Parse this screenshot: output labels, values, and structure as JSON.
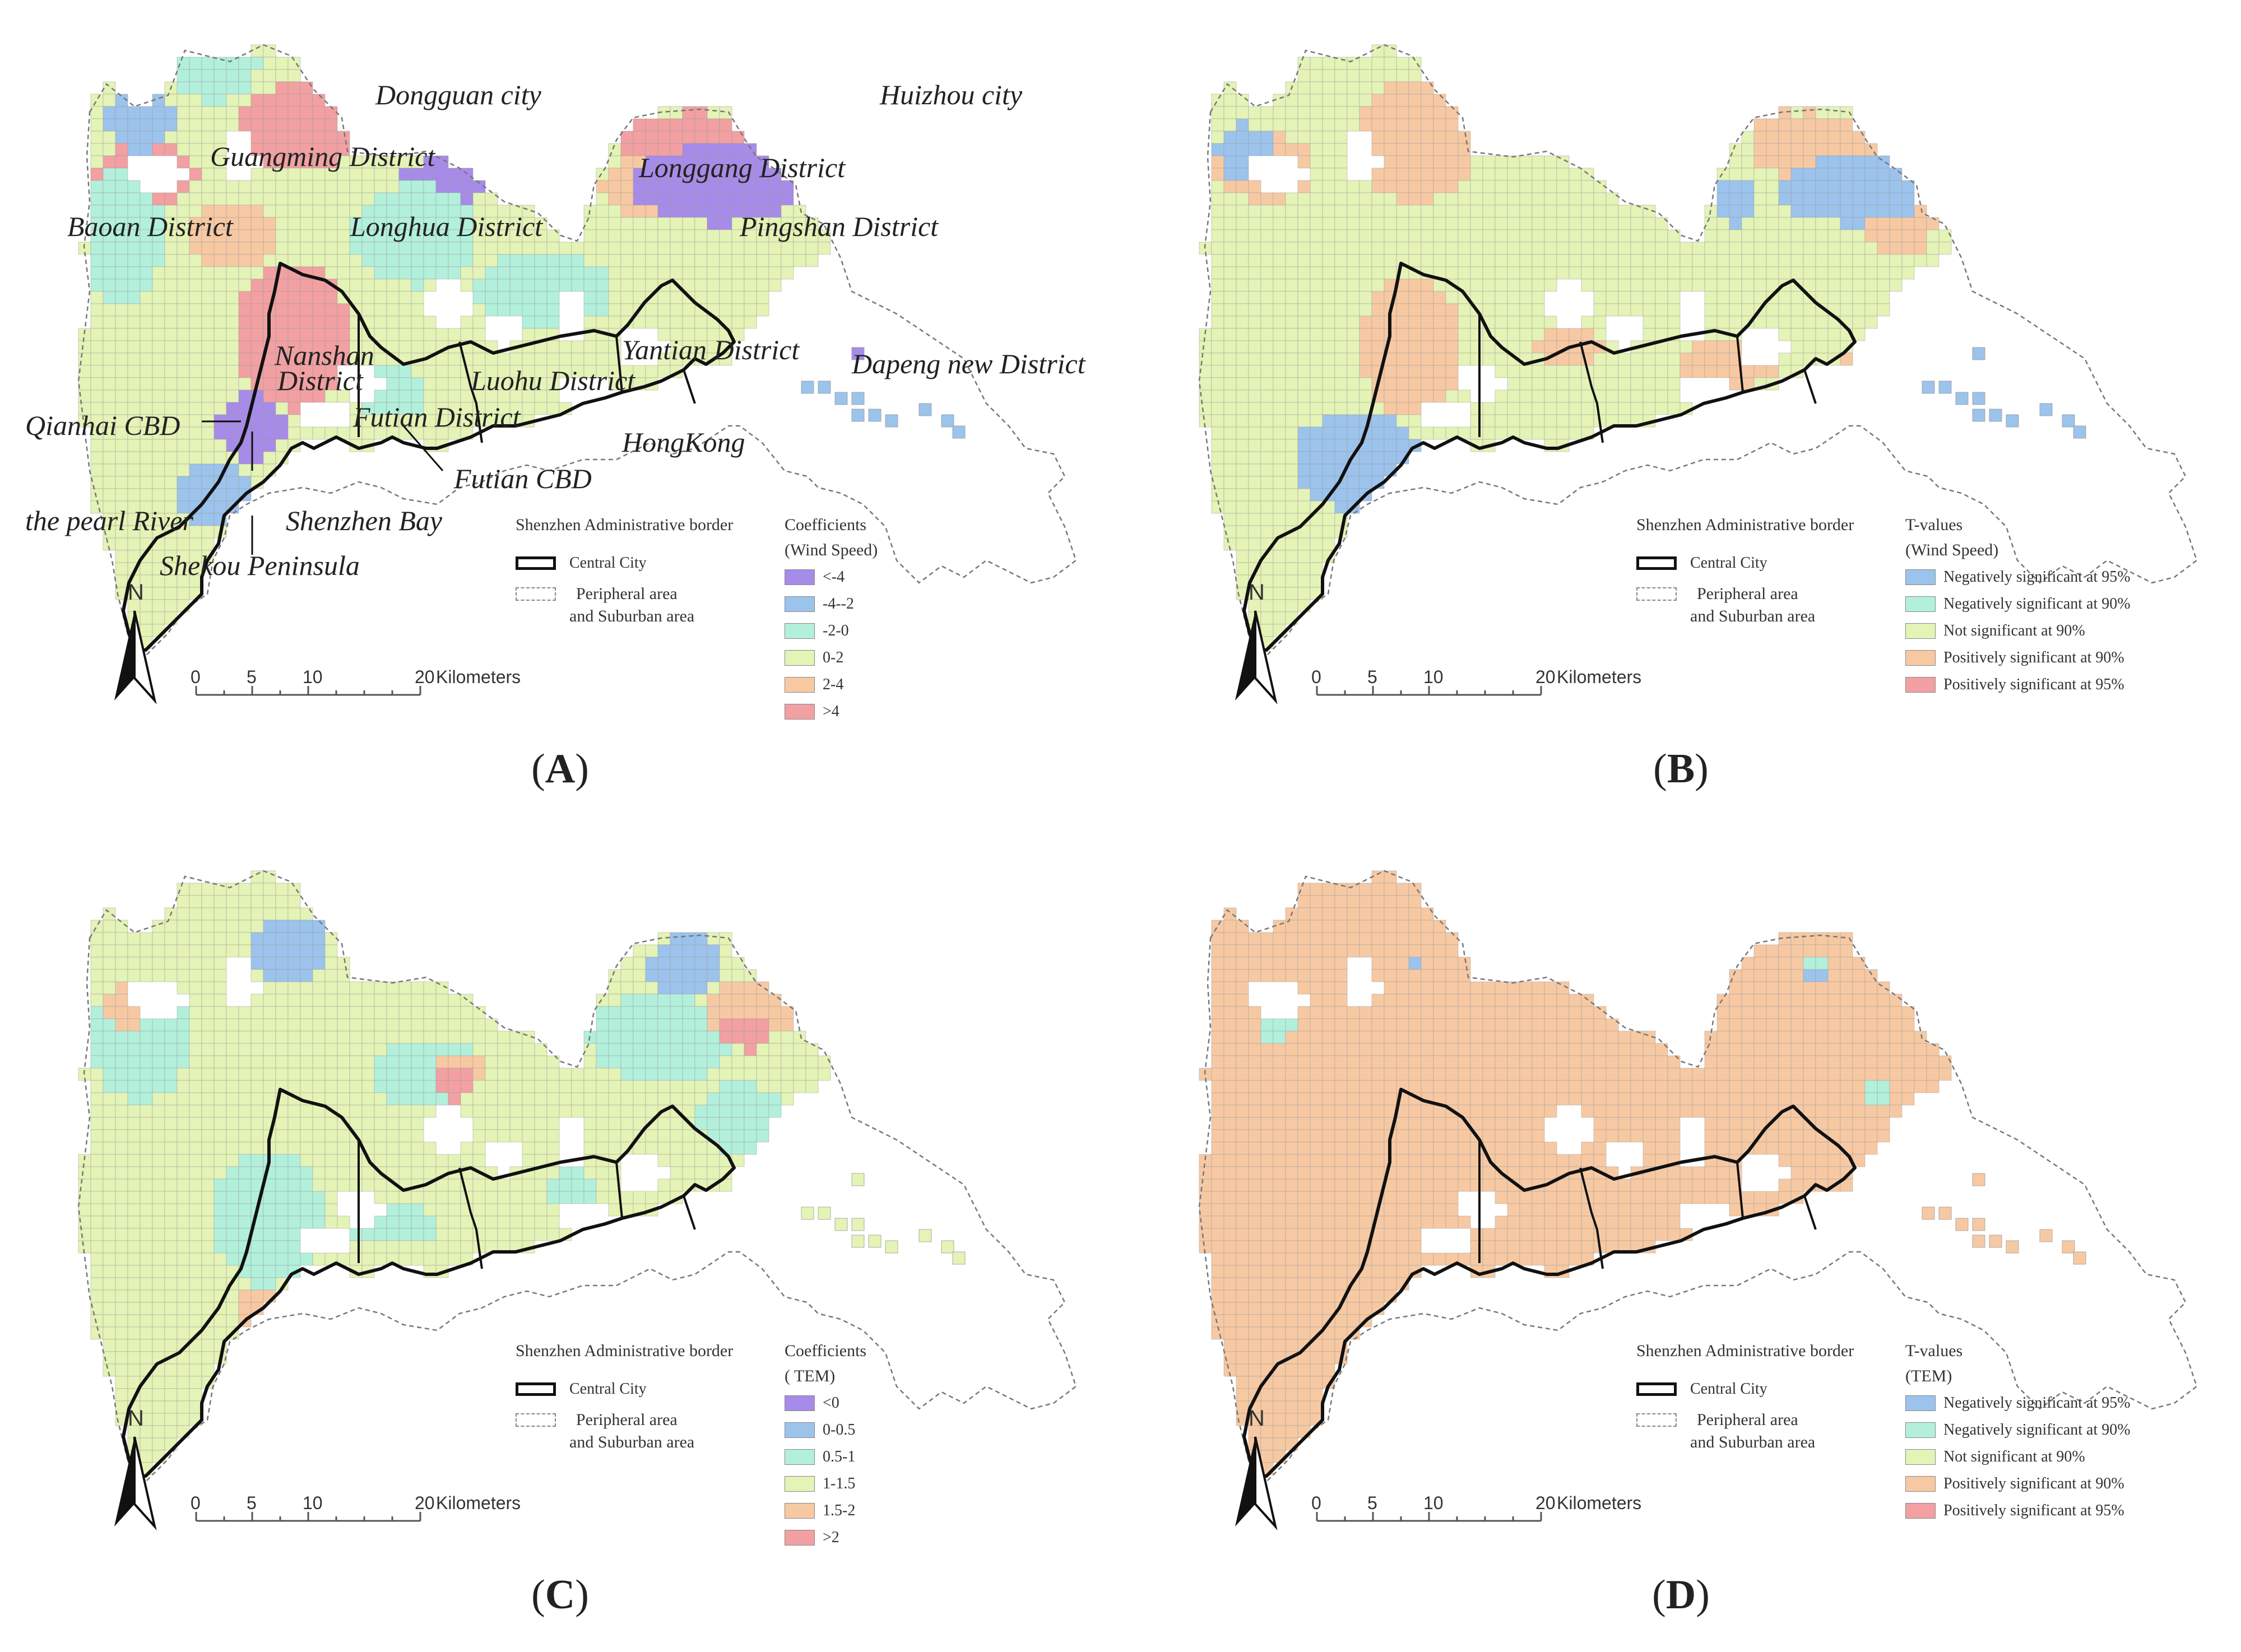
{
  "panels": [
    {
      "label": "A",
      "legend_kind": "Coefficients",
      "legend_kind_sub": "(Wind Speed)",
      "classes": [
        {
          "label": "<-4",
          "color": "#a78be8"
        },
        {
          "label": "-4--2",
          "color": "#9cc3ec"
        },
        {
          "label": "-2-0",
          "color": "#b2f0dc"
        },
        {
          "label": "0-2",
          "color": "#e4f3b6"
        },
        {
          "label": "2-4",
          "color": "#f7c9a3"
        },
        {
          "label": ">4",
          "color": "#f2a0a2"
        }
      ]
    },
    {
      "label": "B",
      "legend_kind": "T-values",
      "legend_kind_sub": "(Wind Speed)",
      "classes": [
        {
          "label": "Negatively significant at 95%",
          "color": "#9cc3ec"
        },
        {
          "label": "Negatively significant at 90%",
          "color": "#b2f0dc"
        },
        {
          "label": "Not significant at 90%",
          "color": "#e4f3b6"
        },
        {
          "label": "Positively significant at 90%",
          "color": "#f7c9a3"
        },
        {
          "label": "Positively significant at 95%",
          "color": "#f2a0a2"
        }
      ]
    },
    {
      "label": "C",
      "legend_kind": "Coefficients",
      "legend_kind_sub": "( TEM)",
      "classes": [
        {
          "label": "<0",
          "color": "#a78be8"
        },
        {
          "label": "0-0.5",
          "color": "#9cc3ec"
        },
        {
          "label": "0.5-1",
          "color": "#b2f0dc"
        },
        {
          "label": "1-1.5",
          "color": "#e4f3b6"
        },
        {
          "label": "1.5-2",
          "color": "#f7c9a3"
        },
        {
          "label": ">2",
          "color": "#f2a0a2"
        }
      ]
    },
    {
      "label": "D",
      "legend_kind": "T-values",
      "legend_kind_sub": "(TEM)",
      "classes": [
        {
          "label": "Negatively significant at 95%",
          "color": "#9cc3ec"
        },
        {
          "label": "Negatively significant at 90%",
          "color": "#b2f0dc"
        },
        {
          "label": "Not significant at 90%",
          "color": "#e4f3b6"
        },
        {
          "label": "Positively significant at 90%",
          "color": "#f7c9a3"
        },
        {
          "label": "Positively significant at 95%",
          "color": "#f2a0a2"
        }
      ]
    }
  ],
  "border_legend": {
    "title": "Shenzhen Administrative border",
    "central": "Central City",
    "peripheral_line1": "Peripheral area",
    "peripheral_line2": "and Suburban area"
  },
  "north_arrow": "N",
  "scale_bar": {
    "ticks": [
      "0",
      "5",
      "10",
      "20"
    ],
    "unit": "Kilometers"
  },
  "place_names": {
    "dongguan": "Dongguan city",
    "huizhou": "Huizhou city",
    "guangming": "Guangming District",
    "longgang": "Longgang District",
    "baoan": "Baoan District",
    "longhua": "Longhua District",
    "pingshan": "Pingshan District",
    "yantian": "Yantian District",
    "dapeng": "Dapeng new District",
    "nanshan1": "Nanshan",
    "nanshan2": "District",
    "luohu": "Luohu District",
    "qianhai": "Qianhai CBD",
    "futian": "Futian District",
    "hongkong": "HongKong",
    "futian_cbd": "Futian CBD",
    "pearl_river": "the pearl River",
    "shenzhen_bay": "Shenzhen Bay",
    "shekou": "Shekou Peninsula"
  }
}
